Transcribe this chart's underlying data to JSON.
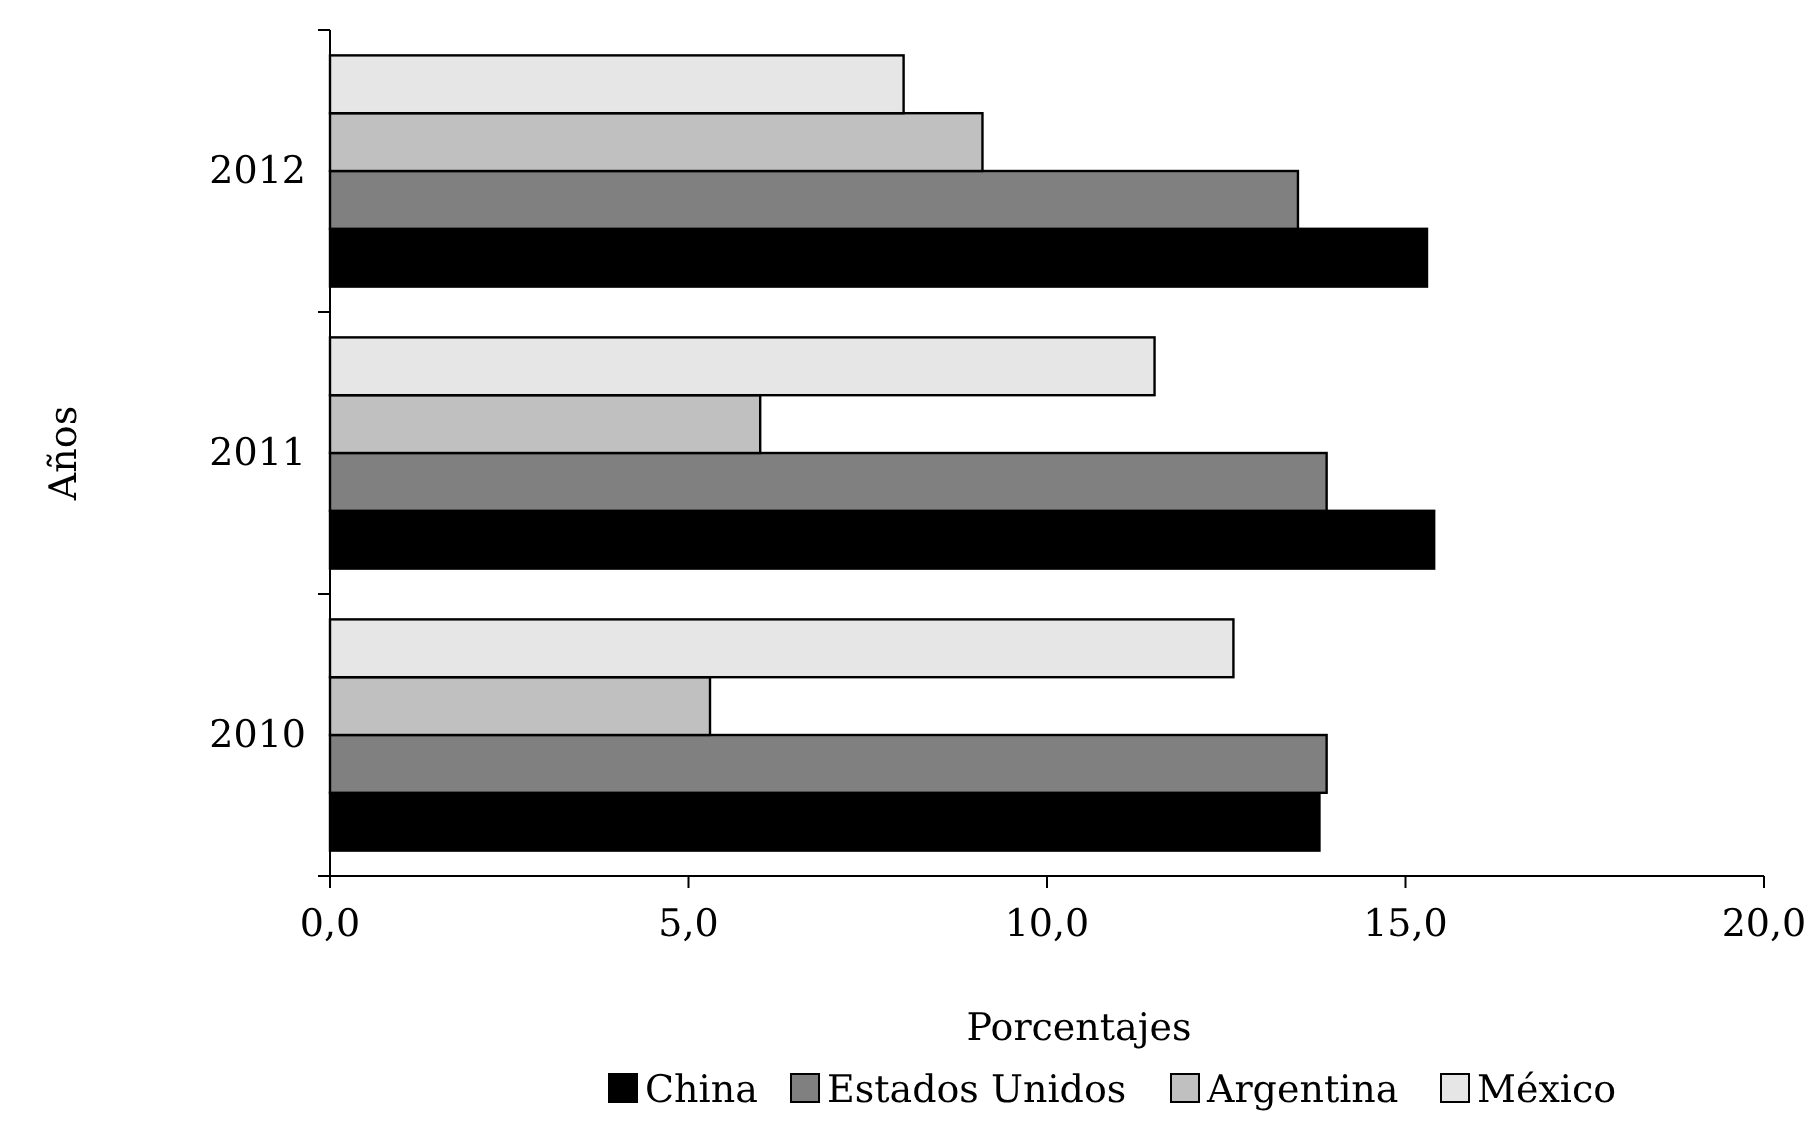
{
  "chart_data": {
    "type": "bar",
    "orientation": "horizontal",
    "xlabel": "Porcentajes",
    "ylabel": "Años",
    "categories": [
      "2012",
      "2011",
      "2010"
    ],
    "series": [
      {
        "name": "China",
        "color": "#000000",
        "values": [
          15.3,
          15.4,
          13.8
        ]
      },
      {
        "name": "Estados Unidos",
        "color": "#808080",
        "values": [
          13.5,
          13.9,
          13.9
        ]
      },
      {
        "name": "Argentina",
        "color": "#c0c0c0",
        "values": [
          9.1,
          6.0,
          5.3
        ]
      },
      {
        "name": "México",
        "color": "#e6e6e6",
        "values": [
          8.0,
          11.5,
          12.6
        ]
      }
    ],
    "xlim": [
      0,
      20
    ],
    "xticks": [
      {
        "value": 0,
        "label": "0,0"
      },
      {
        "value": 5,
        "label": "5,0"
      },
      {
        "value": 10,
        "label": "10,0"
      },
      {
        "value": 15,
        "label": "15,0"
      },
      {
        "value": 20,
        "label": "20,0"
      }
    ],
    "grid": false,
    "legend": "bottom"
  }
}
